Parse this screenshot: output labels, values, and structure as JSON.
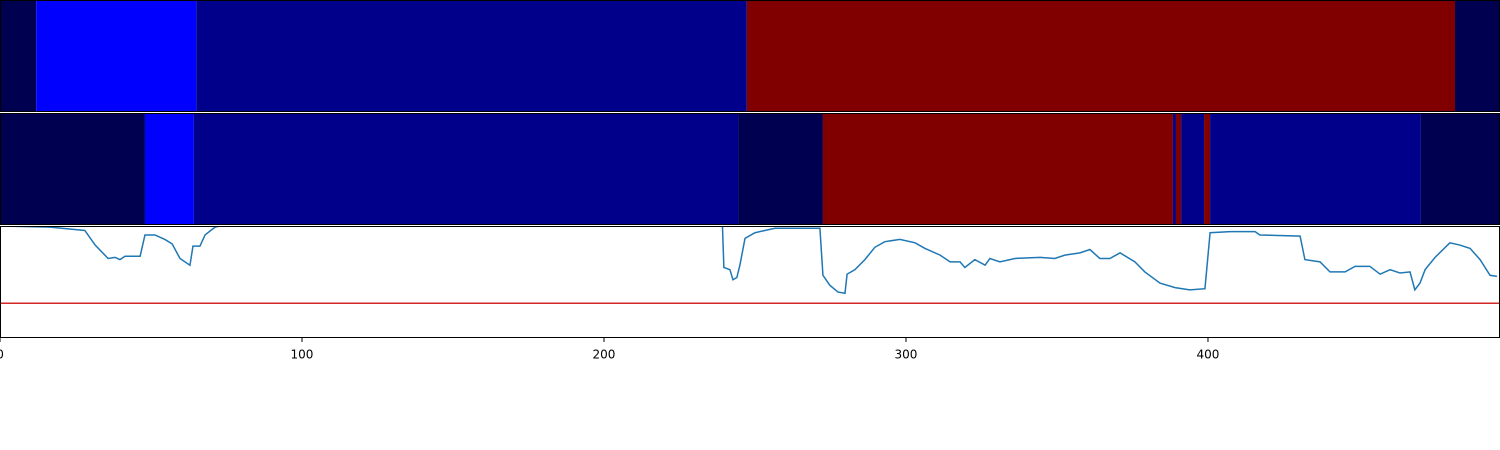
{
  "chart_data": [
    {
      "type": "segments",
      "xlim": [
        0,
        496.7
      ],
      "segments": [
        {
          "start": 0,
          "end": 12,
          "color": "#000050"
        },
        {
          "start": 12,
          "end": 65,
          "color": "#0000ff"
        },
        {
          "start": 65,
          "end": 247.3,
          "color": "#00008b"
        },
        {
          "start": 247.3,
          "end": 481.8,
          "color": "#800000"
        },
        {
          "start": 481.8,
          "end": 496.7,
          "color": "#000050"
        }
      ]
    },
    {
      "type": "segments",
      "xlim": [
        0,
        496.7
      ],
      "segments": [
        {
          "start": 0,
          "end": 48,
          "color": "#000050"
        },
        {
          "start": 48,
          "end": 64.2,
          "color": "#0000ff"
        },
        {
          "start": 64.2,
          "end": 244.4,
          "color": "#00008b"
        },
        {
          "start": 244.4,
          "end": 272.5,
          "color": "#000050"
        },
        {
          "start": 272.5,
          "end": 388.4,
          "color": "#800000"
        },
        {
          "start": 388.4,
          "end": 389.4,
          "color": "#00008b"
        },
        {
          "start": 389.4,
          "end": 391.1,
          "color": "#800000"
        },
        {
          "start": 391.1,
          "end": 398.7,
          "color": "#00008b"
        },
        {
          "start": 398.7,
          "end": 400.7,
          "color": "#800000"
        },
        {
          "start": 400.7,
          "end": 470.5,
          "color": "#00008b"
        },
        {
          "start": 470.5,
          "end": 496.7,
          "color": "#000050"
        }
      ]
    },
    {
      "type": "line",
      "xlim": [
        0,
        496.7
      ],
      "ylim": [
        0,
        1
      ],
      "xticks": [
        0,
        100,
        200,
        300,
        400
      ],
      "color": "#1f77b4",
      "x": [
        0,
        16.6,
        28.1,
        31.5,
        35.8,
        38.1,
        39.7,
        41.4,
        46.4,
        48.0,
        51.3,
        54.6,
        57.0,
        59.6,
        62.9,
        63.9,
        66.2,
        67.9,
        71.2,
        72.8,
        238.4,
        239.1,
        239.7,
        241.7,
        242.7,
        244.0,
        245.0,
        246.7,
        250.0,
        253.3,
        256.6,
        271.5,
        272.5,
        274.8,
        277.5,
        279.8,
        280.5,
        283.1,
        286.4,
        289.7,
        293.0,
        298.0,
        303.0,
        306.3,
        311.3,
        314.6,
        317.9,
        319.5,
        322.8,
        326.2,
        327.8,
        331.1,
        336.1,
        344.4,
        349.3,
        352.6,
        357.6,
        360.9,
        364.2,
        367.5,
        370.9,
        375.8,
        379.1,
        384.1,
        389.1,
        394.0,
        399.0,
        400.7,
        407.3,
        415.6,
        417.2,
        430.5,
        432.1,
        437.1,
        440.4,
        445.4,
        448.7,
        453.6,
        457.0,
        460.3,
        463.6,
        466.9,
        468.5,
        470.2,
        471.9,
        475.2,
        480.1,
        483.4,
        486.8,
        490.1,
        493.4,
        495.7
      ],
      "values": [
        1.0,
        0.99,
        0.96,
        0.83,
        0.71,
        0.72,
        0.7,
        0.73,
        0.73,
        0.92,
        0.92,
        0.88,
        0.84,
        0.71,
        0.65,
        0.82,
        0.82,
        0.92,
        0.99,
        1.0,
        1.0,
        1.1,
        0.63,
        0.61,
        0.52,
        0.54,
        0.65,
        0.89,
        0.94,
        0.96,
        0.98,
        0.98,
        0.56,
        0.47,
        0.41,
        0.4,
        0.57,
        0.61,
        0.7,
        0.81,
        0.86,
        0.88,
        0.85,
        0.8,
        0.74,
        0.68,
        0.68,
        0.63,
        0.7,
        0.65,
        0.71,
        0.68,
        0.71,
        0.72,
        0.71,
        0.74,
        0.76,
        0.79,
        0.71,
        0.71,
        0.76,
        0.68,
        0.59,
        0.49,
        0.45,
        0.43,
        0.44,
        0.94,
        0.95,
        0.95,
        0.92,
        0.91,
        0.7,
        0.68,
        0.59,
        0.59,
        0.64,
        0.64,
        0.57,
        0.61,
        0.58,
        0.59,
        0.43,
        0.49,
        0.61,
        0.72,
        0.85,
        0.83,
        0.8,
        0.7,
        0.56,
        0.55
      ],
      "hlines": [
        {
          "value": 0.31,
          "color": "#d62728"
        }
      ]
    }
  ]
}
